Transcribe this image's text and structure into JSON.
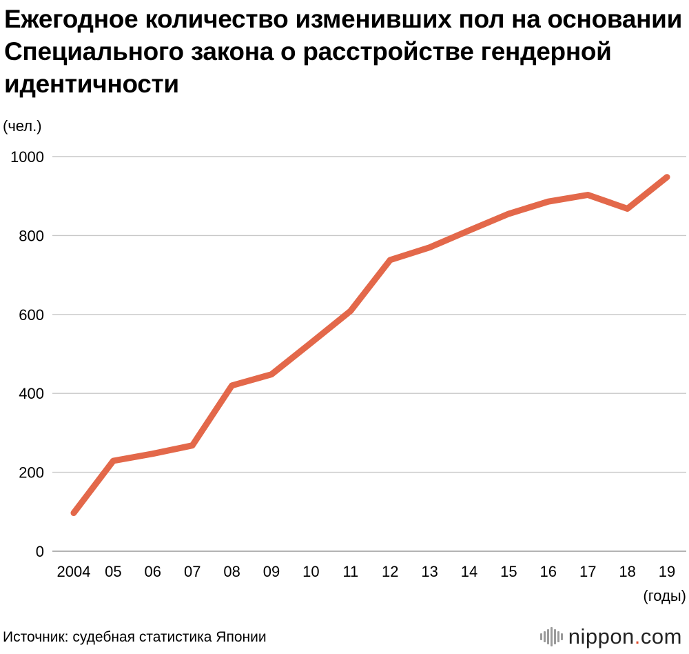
{
  "title": "Ежегодное количество изменивших пол на основании Специального закона о расстройстве гендерной идентичности",
  "source": "Источник: судебная статистика Японии",
  "brand": {
    "name": "nippon",
    "dot": ".",
    "tld": "com"
  },
  "colors": {
    "line": "#e3684a",
    "grid": "#c8c8c8",
    "text": "#000000",
    "brand_dot": "#e04b2a"
  },
  "chart_data": {
    "type": "line",
    "y_unit": "(чел.)",
    "x_unit": "(годы)",
    "x": [
      "2004",
      "05",
      "06",
      "07",
      "08",
      "09",
      "10",
      "11",
      "12",
      "13",
      "14",
      "15",
      "16",
      "17",
      "18",
      "19"
    ],
    "series": [
      {
        "values": [
          97,
          229,
          247,
          268,
          420,
          448,
          528,
          609,
          738,
          770,
          813,
          855,
          886,
          903,
          868,
          948
        ]
      }
    ],
    "ylim": [
      0,
      1000
    ],
    "yticks": [
      0,
      200,
      400,
      600,
      800,
      1000
    ],
    "grid": true,
    "legend": false
  }
}
